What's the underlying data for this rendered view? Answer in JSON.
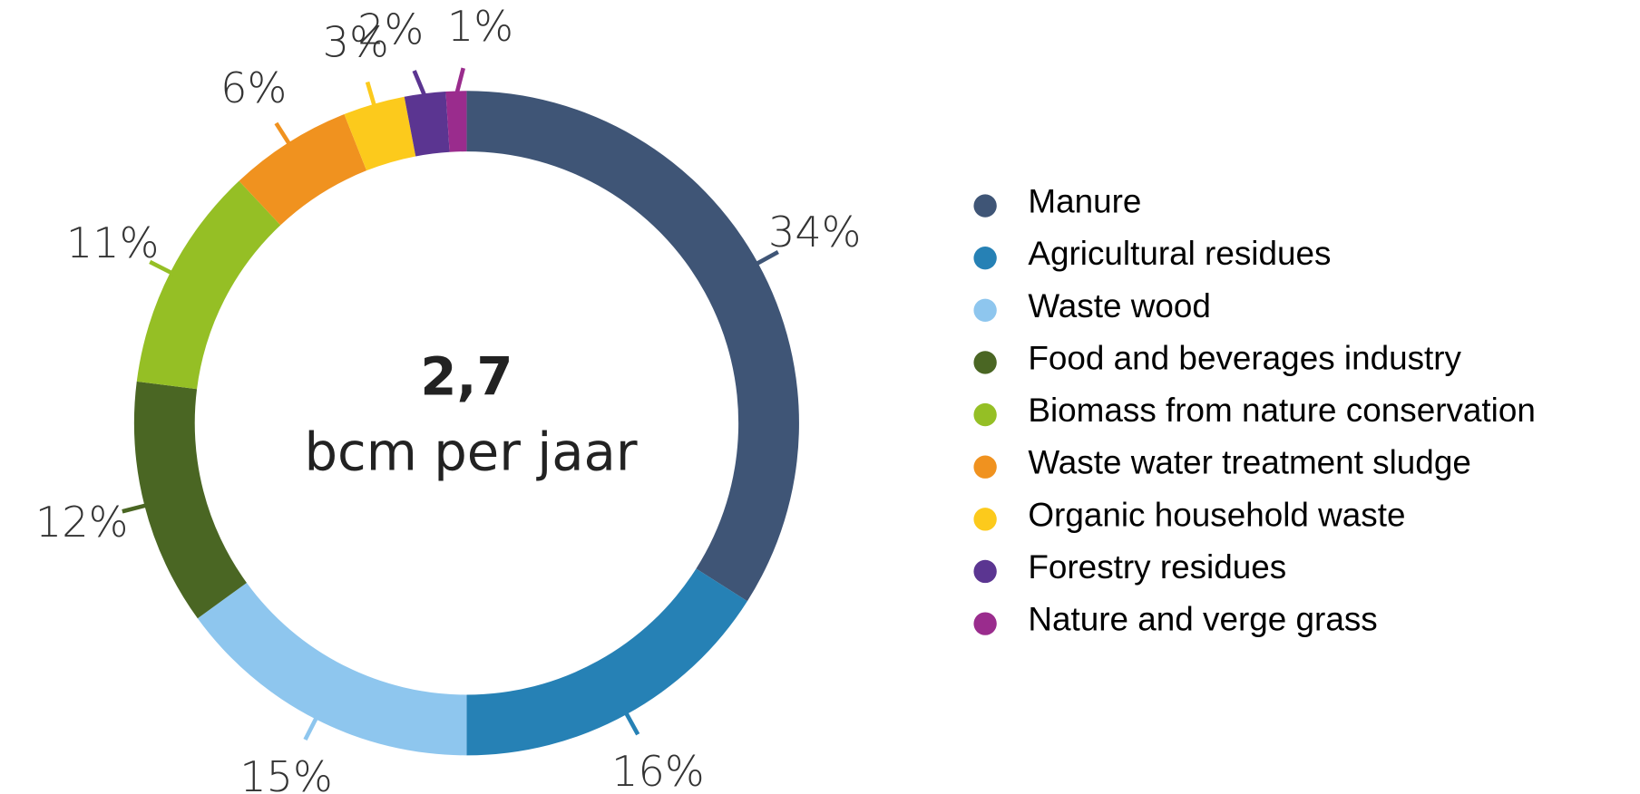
{
  "chart_data": {
    "type": "donut",
    "center_value": "2,7",
    "center_label": "bcm per jaar",
    "categories": [
      "Manure",
      "Agricultural residues",
      "Waste wood",
      "Food and beverages industry",
      "Biomass from nature conservation",
      "Waste water treatment sludge",
      "Organic household waste",
      "Forestry residues",
      "Nature and verge grass"
    ],
    "values": [
      34,
      16,
      15,
      12,
      11,
      6,
      3,
      2,
      1
    ],
    "value_labels": [
      "34%",
      "16%",
      "15%",
      "12%",
      "11%",
      "6%",
      "3%",
      "2%",
      "1%"
    ],
    "colors": [
      "#3f5576",
      "#2681b5",
      "#8ec6ee",
      "#4a6623",
      "#95bf25",
      "#f0921f",
      "#fcca1c",
      "#5b3591",
      "#9a2c8d"
    ],
    "legend": "right"
  }
}
